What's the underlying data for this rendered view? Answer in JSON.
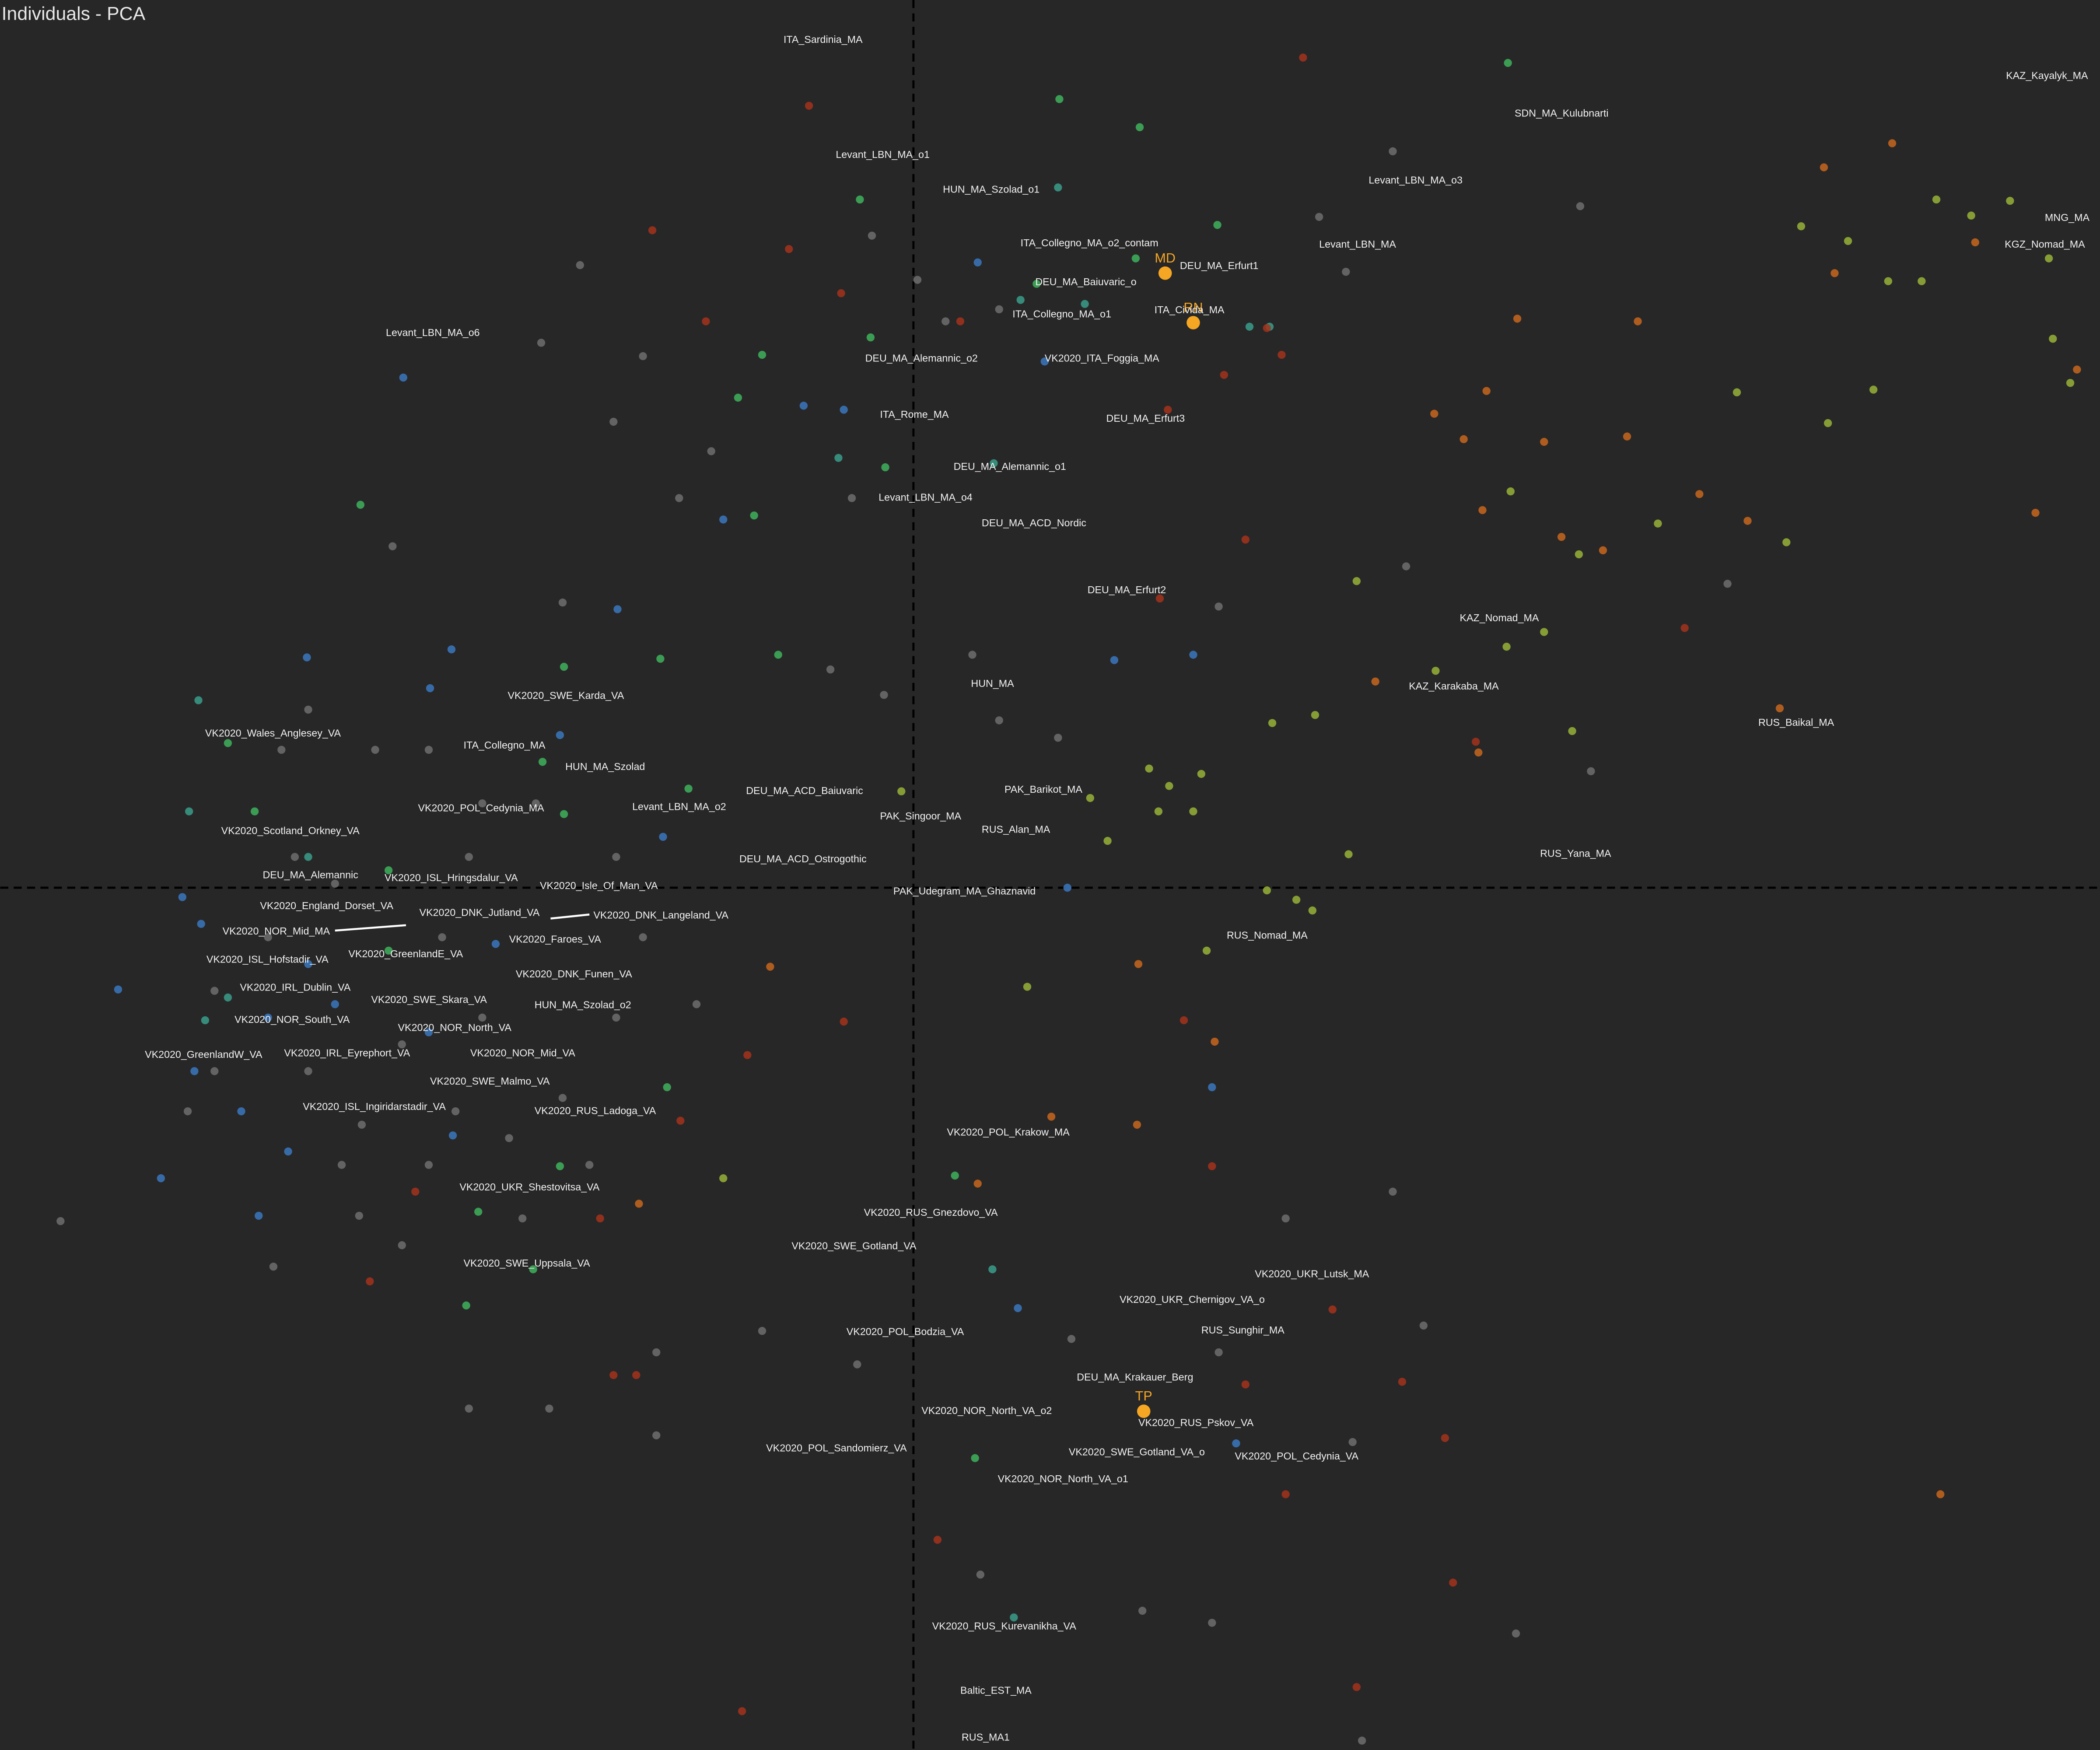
{
  "chart_data": {
    "type": "scatter",
    "title": "Individuals - PCA",
    "xlim": [
      -682,
      886
    ],
    "ylim": [
      -644,
      663
    ],
    "dashed_zero_lines": true,
    "series": [
      {
        "color": "#6f6f6f",
        "x": [
          -31,
          3,
          24,
          64,
          -202,
          -224,
          -278,
          -249,
          -389,
          -151,
          -175,
          -46,
          -22,
          64,
          108,
          44,
          228,
          303,
          358,
          498,
          608,
          506,
          368,
          -42,
          -113,
          -192,
          -272,
          -332,
          -478,
          -637,
          -382,
          -414,
          -427,
          -292,
          50,
          171,
          223,
          450,
          335,
          278,
          228,
          118,
          328,
          358,
          381,
          -482,
          -452,
          -402,
          -362,
          -322,
          -432,
          -352,
          -322,
          -382,
          -412,
          -342,
          -302,
          -262,
          -222,
          -202,
          -222,
          -282,
          -332,
          -462,
          -522,
          -472,
          -452,
          -262,
          -362,
          -242,
          -192,
          -162,
          -522,
          -542,
          323,
          -62
        ],
        "values": [
          487,
          454,
          423,
          432,
          397,
          348,
          407,
          465,
          255,
          326,
          291,
          291,
          144,
          125,
          112,
          174,
          210,
          501,
          550,
          509,
          227,
          87,
          240,
          -356,
          -331,
          -409,
          -389,
          -389,
          -283,
          -249,
          -267,
          -245,
          -207,
          -247,
          -513,
          -540,
          -549,
          -557,
          -637,
          -247,
          -347,
          -337,
          -414,
          -227,
          -327,
          -37,
          -137,
          103,
          103,
          63,
          3,
          -37,
          -97,
          -117,
          -177,
          -167,
          -187,
          -157,
          -97,
          -37,
          23,
          63,
          23,
          23,
          -77,
          103,
          133,
          213,
          -207,
          -207,
          -347,
          -87,
          -137,
          -167,
          460,
          163
        ]
      },
      {
        "color": "#3b78c0",
        "x": [
          -381,
          -52,
          -82,
          -142,
          -221,
          -453,
          -345,
          -361,
          -264,
          -187,
          115,
          150,
          209,
          223,
          78,
          241,
          -594,
          -532,
          -482,
          -502,
          -467,
          -432,
          -362,
          -537,
          -546,
          -452,
          -312,
          -344,
          -562,
          -489,
          48,
          98
        ],
        "values": [
          381,
          357,
          360,
          275,
          208,
          172,
          178,
          149,
          114,
          38,
          0,
          170,
          174,
          -149,
          -314,
          -415,
          -76,
          -27,
          -97,
          -167,
          -197,
          -87,
          -108,
          -137,
          -7,
          -57,
          -42,
          -185,
          -217,
          -245,
          467,
          393
        ]
      },
      {
        "color": "#3fb25d",
        "x": [
          109,
          -40,
          444,
          169,
          227,
          166,
          92,
          -32,
          -113,
          -131,
          -21,
          -119,
          -413,
          -189,
          -101,
          -261,
          -277,
          -261,
          -168,
          -284,
          -334,
          -325,
          -264,
          -184,
          31,
          46,
          -492,
          -512,
          -392,
          -392
        ],
        "values": [
          589,
          514,
          616,
          568,
          495,
          470,
          451,
          411,
          398,
          366,
          314,
          278,
          286,
          171,
          174,
          165,
          94,
          55,
          74,
          -285,
          -312,
          -242,
          -208,
          -149,
          -215,
          -426,
          57,
          108,
          13,
          -47
        ]
      },
      {
        "color": "#3a9e8a",
        "x": [
          108,
          80,
          128,
          251,
          266,
          60,
          -56,
          75,
          59,
          -541,
          -534,
          -529,
          -452,
          -512
        ],
        "values": [
          523,
          439,
          436,
          419,
          419,
          317,
          321,
          -545,
          -285,
          57,
          140,
          -99,
          23,
          -82
        ]
      },
      {
        "color": "#a3321c",
        "x": [
          291,
          -78,
          -195,
          -93,
          -54,
          -155,
          35,
          275,
          264,
          232,
          190,
          248,
          184,
          576,
          420,
          -52,
          -124,
          -174,
          -406,
          -224,
          -207,
          223,
          202,
          313,
          365,
          397,
          278,
          248,
          18,
          -128,
          403,
          331,
          -372,
          -234
        ],
        "values": [
          620,
          584,
          491,
          477,
          444,
          423,
          423,
          398,
          418,
          383,
          357,
          260,
          216,
          194,
          109,
          -100,
          -125,
          -174,
          -294,
          -364,
          -364,
          -208,
          -99,
          -315,
          -369,
          -411,
          -453,
          -371,
          -487,
          -615,
          -519,
          -597,
          -227,
          -247
        ]
      },
      {
        "color": "#c8661e",
        "x": [
          731,
          680,
          793,
          688,
          541,
          451,
          428,
          389,
          411,
          471,
          533,
          587,
          425,
          484,
          515,
          623,
          838,
          869,
          422,
          345,
          647,
          767,
          168,
          225,
          167,
          103,
          48,
          -205,
          -107
        ],
        "values": [
          556,
          538,
          482,
          459,
          423,
          425,
          371,
          354,
          335,
          333,
          337,
          294,
          282,
          262,
          252,
          274,
          280,
          387,
          101,
          154,
          134,
          -453,
          -57,
          -115,
          -177,
          -171,
          -221,
          -236,
          -59
        ]
      },
      {
        "color": "#98b33a",
        "x": [
          790,
          819,
          848,
          851,
          864,
          663,
          698,
          764,
          728,
          753,
          717,
          683,
          615,
          652,
          556,
          446,
          497,
          331,
          443,
          471,
          390,
          492,
          300,
          268,
          176,
          191,
          215,
          209,
          183,
          145,
          132,
          325,
          264,
          286,
          298,
          219,
          85,
          -142,
          -9
        ],
        "values": [
          502,
          513,
          470,
          410,
          377,
          494,
          483,
          514,
          453,
          453,
          372,
          347,
          370,
          258,
          272,
          296,
          249,
          229,
          180,
          191,
          162,
          117,
          129,
          123,
          89,
          76,
          85,
          57,
          57,
          35,
          67,
          25,
          -2,
          -9,
          -17,
          -47,
          -74,
          -217,
          72
        ]
      },
      {
        "color": "#f5a623",
        "labels": [
          "MD",
          "RN",
          "TP"
        ],
        "x": [
          188,
          209,
          172
        ],
        "values": [
          459,
          422,
          -391
        ]
      }
    ],
    "annotations": [
      {
        "text": "ITA_Sardinia_MA",
        "x": -97,
        "y": 633
      },
      {
        "text": "KAZ_Kayalyk_MA",
        "x": 816,
        "y": 606
      },
      {
        "text": "SDN_MA_Kulubnarti",
        "x": 449,
        "y": 578
      },
      {
        "text": "Levant_LBN_MA_o1",
        "x": -58,
        "y": 547
      },
      {
        "text": "HUN_MA_Szolad_o1",
        "x": 22,
        "y": 521
      },
      {
        "text": "Levant_LBN_MA_o3",
        "x": 340,
        "y": 528
      },
      {
        "text": "MNG_MA",
        "x": 845,
        "y": 500
      },
      {
        "text": "ITA_Collegno_MA_o2_contam",
        "x": 80,
        "y": 481
      },
      {
        "text": "Levant_LBN_MA",
        "x": 303,
        "y": 480
      },
      {
        "text": "KGZ_Nomad_MA",
        "x": 815,
        "y": 480
      },
      {
        "text": "DEU_MA_Erfurt1",
        "x": 199,
        "y": 464
      },
      {
        "text": "DEU_MA_Baiuvaric_o",
        "x": 91,
        "y": 452
      },
      {
        "text": "ITA_Collegno_MA_o1",
        "x": 74,
        "y": 428
      },
      {
        "text": "ITA_Civida_MA",
        "x": 180,
        "y": 431
      },
      {
        "text": "Levant_LBN_MA_o6",
        "x": -394,
        "y": 414
      },
      {
        "text": "DEU_MA_Alemannic_o2",
        "x": -36,
        "y": 395
      },
      {
        "text": "VK2020_ITA_Foggia_MA",
        "x": 98,
        "y": 395
      },
      {
        "text": "ITA_Rome_MA",
        "x": -25,
        "y": 353
      },
      {
        "text": "DEU_MA_Erfurt3",
        "x": 144,
        "y": 350
      },
      {
        "text": "DEU_MA_Alemannic_o1",
        "x": 30,
        "y": 314
      },
      {
        "text": "Levant_LBN_MA_o4",
        "x": -26,
        "y": 291
      },
      {
        "text": "DEU_MA_ACD_Nordic",
        "x": 51,
        "y": 272
      },
      {
        "text": "DEU_MA_Erfurt2",
        "x": 130,
        "y": 222
      },
      {
        "text": "KAZ_Nomad_MA",
        "x": 408,
        "y": 201
      },
      {
        "text": "HUN_MA",
        "x": 43,
        "y": 152
      },
      {
        "text": "KAZ_Karakaba_MA",
        "x": 370,
        "y": 150
      },
      {
        "text": "VK2020_SWE_Karda_VA",
        "x": -303,
        "y": 143
      },
      {
        "text": "RUS_Baikal_MA",
        "x": 631,
        "y": 123
      },
      {
        "text": "VK2020_Wales_Anglesey_VA",
        "x": -529,
        "y": 115
      },
      {
        "text": "ITA_Collegno_MA",
        "x": -336,
        "y": 106
      },
      {
        "text": "HUN_MA_Szolad",
        "x": -260,
        "y": 90
      },
      {
        "text": "DEU_MA_ACD_Baiuvaric",
        "x": -125,
        "y": 72
      },
      {
        "text": "PAK_Barikot_MA",
        "x": 68,
        "y": 73
      },
      {
        "text": "VK2020_POL_Cedynia_MA",
        "x": -370,
        "y": 59
      },
      {
        "text": "Levant_LBN_MA_o2",
        "x": -210,
        "y": 60
      },
      {
        "text": "PAK_Singoor_MA",
        "x": -25,
        "y": 53
      },
      {
        "text": "RUS_Alan_MA",
        "x": 51,
        "y": 43
      },
      {
        "text": "VK2020_Scotland_Orkney_VA",
        "x": -517,
        "y": 42
      },
      {
        "text": "DEU_MA_ACD_Ostrogothic",
        "x": -130,
        "y": 21
      },
      {
        "text": "RUS_Yana_MA",
        "x": 468,
        "y": 25
      },
      {
        "text": "DEU_MA_Alemannic",
        "x": -486,
        "y": 9
      },
      {
        "text": "VK2020_ISL_Hringsdalur_VA",
        "x": -395,
        "y": 7
      },
      {
        "text": "VK2020_Isle_Of_Man_VA",
        "x": -279,
        "y": 1
      },
      {
        "text": "PAK_Udegram_MA_Ghaznavid",
        "x": -15,
        "y": -3
      },
      {
        "text": "VK2020_England_Dorset_VA",
        "x": -488,
        "y": -14
      },
      {
        "text": "VK2020_DNK_Jutland_VA",
        "x": -369,
        "y": -19
      },
      {
        "text": "VK2020_DNK_Langeland_VA",
        "x": -239,
        "y": -21
      },
      {
        "text": "VK2020_NOR_Mid_MA",
        "x": -516,
        "y": -33
      },
      {
        "text": "RUS_Nomad_MA",
        "x": 234,
        "y": -36
      },
      {
        "text": "VK2020_Faroes_VA",
        "x": -302,
        "y": -39
      },
      {
        "text": "VK2020_GreenlandE_VA",
        "x": -422,
        "y": -50
      },
      {
        "text": "VK2020_ISL_Hofstadir_VA",
        "x": -528,
        "y": -54
      },
      {
        "text": "VK2020_DNK_Funen_VA",
        "x": -297,
        "y": -65
      },
      {
        "text": "VK2020_IRL_Dublin_VA",
        "x": -503,
        "y": -75
      },
      {
        "text": "VK2020_SWE_Skara_VA",
        "x": -405,
        "y": -84
      },
      {
        "text": "HUN_MA_Szolad_o2",
        "x": -283,
        "y": -88
      },
      {
        "text": "VK2020_NOR_South_VA",
        "x": -507,
        "y": -99
      },
      {
        "text": "VK2020_NOR_North_VA",
        "x": -385,
        "y": -105
      },
      {
        "text": "VK2020_GreenlandW_VA",
        "x": -574,
        "y": -125
      },
      {
        "text": "VK2020_IRL_Eyrephort_VA",
        "x": -470,
        "y": -124
      },
      {
        "text": "VK2020_NOR_Mid_VA",
        "x": -331,
        "y": -124
      },
      {
        "text": "VK2020_SWE_Malmo_VA",
        "x": -361,
        "y": -145
      },
      {
        "text": "VK2020_ISL_Ingiridarstadir_VA",
        "x": -456,
        "y": -164
      },
      {
        "text": "VK2020_RUS_Ladoga_VA",
        "x": -283,
        "y": -167
      },
      {
        "text": "VK2020_POL_Krakow_MA",
        "x": 25,
        "y": -183
      },
      {
        "text": "VK2020_UKR_Shestovitsa_VA",
        "x": -339,
        "y": -224
      },
      {
        "text": "VK2020_RUS_Gnezdovo_VA",
        "x": -37,
        "y": -243
      },
      {
        "text": "VK2020_SWE_Gotland_VA",
        "x": -91,
        "y": -268
      },
      {
        "text": "VK2020_SWE_Uppsala_VA",
        "x": -336,
        "y": -281
      },
      {
        "text": "VK2020_UKR_Lutsk_MA",
        "x": 255,
        "y": -289
      },
      {
        "text": "VK2020_UKR_Chernigov_VA_o",
        "x": 154,
        "y": -308
      },
      {
        "text": "RUS_Sunghir_MA",
        "x": 215,
        "y": -331
      },
      {
        "text": "VK2020_POL_Bodzia_VA",
        "x": -50,
        "y": -332
      },
      {
        "text": "DEU_MA_Krakauer_Berg",
        "x": 122,
        "y": -366
      },
      {
        "text": "VK2020_NOR_North_VA_o2",
        "x": 6,
        "y": -391
      },
      {
        "text": "VK2020_RUS_Pskov_VA",
        "x": 168,
        "y": -400
      },
      {
        "text": "VK2020_SWE_Gotland_VA_o",
        "x": 116,
        "y": -422
      },
      {
        "text": "VK2020_POL_Cedynia_VA",
        "x": 240,
        "y": -425
      },
      {
        "text": "VK2020_POL_Sandomierz_VA",
        "x": -110,
        "y": -419
      },
      {
        "text": "VK2020_NOR_North_VA_o1",
        "x": 63,
        "y": -442
      },
      {
        "text": "VK2020_RUS_Kurevanikha_VA",
        "x": 14,
        "y": -552
      },
      {
        "text": "Baltic_EST_MA",
        "x": 35,
        "y": -600
      },
      {
        "text": "RUS_MA1",
        "x": 36,
        "y": -635
      }
    ]
  }
}
